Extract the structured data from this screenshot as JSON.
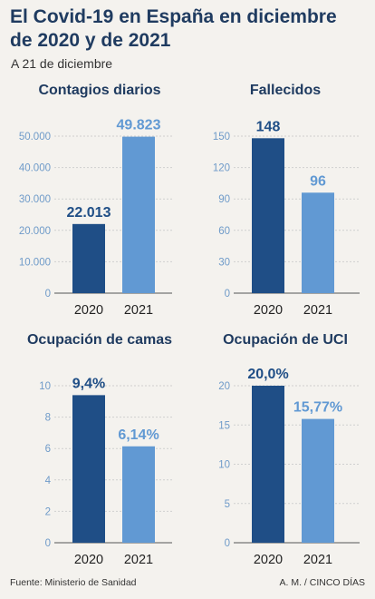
{
  "header": {
    "title_line1": "El Covid-19 en España en diciembre",
    "title_line2": "de 2020 y de 2021",
    "subtitle": "A 21 de diciembre"
  },
  "colors": {
    "dark": "#1f4e86",
    "light": "#6199d3",
    "axis": "#6f9bc9",
    "grid": "#cfcfcf"
  },
  "chart_data": [
    {
      "type": "bar",
      "title": "Contagios diarios",
      "categories": [
        "2020",
        "2021"
      ],
      "values": [
        22013,
        49823
      ],
      "value_labels": [
        "22.013",
        "49.823"
      ],
      "ylim": [
        0,
        50000
      ],
      "yticks": [
        0,
        10000,
        20000,
        30000,
        40000,
        50000
      ],
      "ytick_labels": [
        "0",
        "10.000",
        "20.000",
        "30.000",
        "40.000",
        "50.000"
      ],
      "xlabel": "",
      "ylabel": ""
    },
    {
      "type": "bar",
      "title": "Fallecidos",
      "categories": [
        "2020",
        "2021"
      ],
      "values": [
        148,
        96
      ],
      "value_labels": [
        "148",
        "96"
      ],
      "ylim": [
        0,
        150
      ],
      "yticks": [
        0,
        30,
        60,
        90,
        120,
        150
      ],
      "ytick_labels": [
        "0",
        "30",
        "60",
        "90",
        "120",
        "150"
      ],
      "xlabel": "",
      "ylabel": ""
    },
    {
      "type": "bar",
      "title": "Ocupación de camas",
      "categories": [
        "2020",
        "2021"
      ],
      "values": [
        9.4,
        6.14
      ],
      "value_labels": [
        "9,4%",
        "6,14%"
      ],
      "ylim": [
        0,
        10
      ],
      "yticks": [
        0,
        2,
        4,
        6,
        8,
        10
      ],
      "ytick_labels": [
        "0",
        "2",
        "4",
        "6",
        "8",
        "10"
      ],
      "xlabel": "",
      "ylabel": ""
    },
    {
      "type": "bar",
      "title": "Ocupación de UCI",
      "categories": [
        "2020",
        "2021"
      ],
      "values": [
        20.0,
        15.77
      ],
      "value_labels": [
        "20,0%",
        "15,77%"
      ],
      "ylim": [
        0,
        20
      ],
      "yticks": [
        0,
        5,
        10,
        15,
        20
      ],
      "ytick_labels": [
        "0",
        "5",
        "10",
        "15",
        "20"
      ],
      "xlabel": "",
      "ylabel": ""
    }
  ],
  "footer": {
    "source": "Fuente: Ministerio de Sanidad",
    "credit": "A. M. / CINCO DÍAS"
  }
}
